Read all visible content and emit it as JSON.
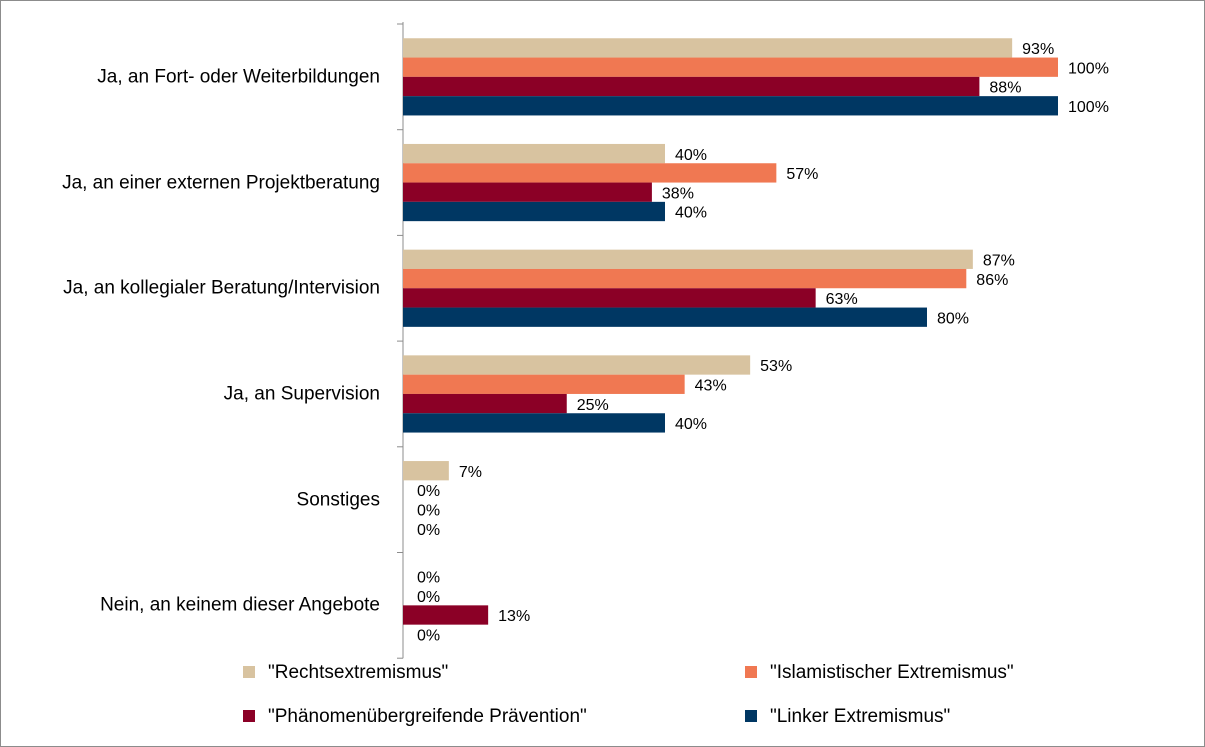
{
  "chart_data": {
    "type": "bar",
    "orientation": "horizontal",
    "categories": [
      "Ja, an Fort- oder Weiterbildungen",
      "Ja, an einer externen Projektberatung",
      "Ja, an kollegialer Beratung/Intervision",
      "Ja, an Supervision",
      "Sonstiges",
      "Nein, an keinem dieser Angebote"
    ],
    "series": [
      {
        "name": "\"Rechtsextremismus\"",
        "color": "#d8c3a0",
        "values": [
          93,
          40,
          87,
          53,
          7,
          0
        ],
        "value_labels": [
          "93%",
          "40%",
          "87%",
          "53%",
          "7%",
          "0%"
        ]
      },
      {
        "name": "\"Islamistischer Extremismus\"",
        "color": "#f07852",
        "values": [
          100,
          57,
          86,
          43,
          0,
          0
        ],
        "value_labels": [
          "100%",
          "57%",
          "86%",
          "43%",
          "0%",
          "0%"
        ]
      },
      {
        "name": "\"Phänomenübergreifende Prävention\"",
        "color": "#8b0026",
        "values": [
          88,
          38,
          63,
          25,
          0,
          13
        ],
        "value_labels": [
          "88%",
          "38%",
          "63%",
          "25%",
          "0%",
          "13%"
        ]
      },
      {
        "name": "\"Linker Extremismus\"",
        "color": "#003763",
        "values": [
          100,
          40,
          80,
          40,
          0,
          0
        ],
        "value_labels": [
          "100%",
          "40%",
          "80%",
          "40%",
          "0%",
          "0%"
        ]
      }
    ],
    "xlim": [
      0,
      100
    ]
  }
}
